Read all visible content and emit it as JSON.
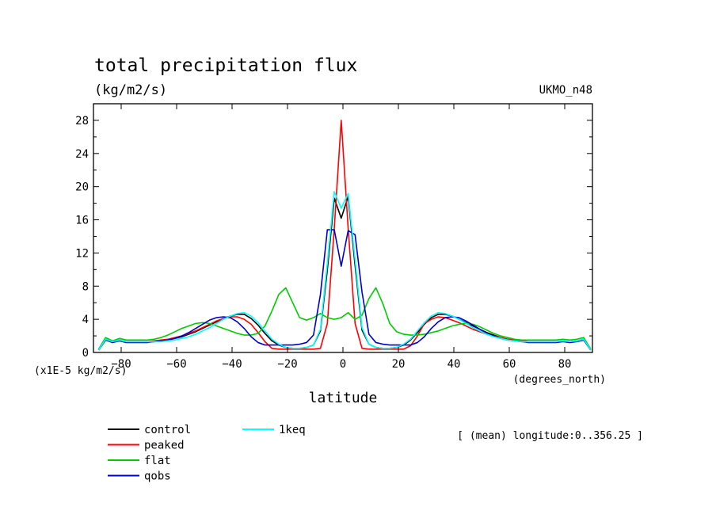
{
  "chart_data": {
    "type": "line",
    "title": "total precipitation flux",
    "units": "(kg/m2/s)",
    "model_label": "UKMO_n48",
    "scale_note": "(x1E-5 kg/m2/s)",
    "xlabel": "latitude",
    "x_units": "(degrees_north)",
    "ylabel": "",
    "xlim": [
      -90,
      90
    ],
    "ylim": [
      0,
      30
    ],
    "x_ticks": [
      -80,
      -60,
      -40,
      -20,
      0,
      20,
      40,
      60,
      80
    ],
    "y_ticks": [
      0,
      4,
      8,
      12,
      16,
      20,
      24,
      28
    ],
    "annotation": "[ (mean) longitude:0..356.25 ]",
    "legend_placement": "bottom",
    "x": [
      -88.125,
      -85.625,
      -83.125,
      -80.625,
      -78.125,
      -75.625,
      -73.125,
      -70.625,
      -68.125,
      -65.625,
      -63.125,
      -60.625,
      -58.125,
      -55.625,
      -53.125,
      -50.625,
      -48.125,
      -45.625,
      -43.125,
      -40.625,
      -38.125,
      -35.625,
      -33.125,
      -30.625,
      -28.125,
      -25.625,
      -23.125,
      -20.625,
      -18.125,
      -15.625,
      -13.125,
      -10.625,
      -8.125,
      -5.625,
      -3.125,
      -0.625,
      1.875,
      4.375,
      6.875,
      9.375,
      11.875,
      14.375,
      16.875,
      19.375,
      21.875,
      24.375,
      26.875,
      29.375,
      31.875,
      34.375,
      36.875,
      39.375,
      41.875,
      44.375,
      46.875,
      49.375,
      51.875,
      54.375,
      56.875,
      59.375,
      61.875,
      64.375,
      66.875,
      69.375,
      71.875,
      74.375,
      76.875,
      79.375,
      81.875,
      84.375,
      86.875,
      89.375
    ],
    "series": [
      {
        "name": "control",
        "color": "#000000",
        "values": [
          0.3,
          1.6,
          1.3,
          1.5,
          1.3,
          1.3,
          1.3,
          1.3,
          1.3,
          1.4,
          1.5,
          1.7,
          1.9,
          2.2,
          2.5,
          2.9,
          3.3,
          3.7,
          4.1,
          4.4,
          4.6,
          4.6,
          4.1,
          3.3,
          2.3,
          1.4,
          0.9,
          0.6,
          0.5,
          0.5,
          0.6,
          0.9,
          2.6,
          10.0,
          18.6,
          16.2,
          18.8,
          10.5,
          2.7,
          1.0,
          0.6,
          0.5,
          0.5,
          0.6,
          0.9,
          1.5,
          2.4,
          3.4,
          4.2,
          4.6,
          4.6,
          4.4,
          4.0,
          3.6,
          3.2,
          2.8,
          2.4,
          2.1,
          1.8,
          1.6,
          1.5,
          1.4,
          1.3,
          1.3,
          1.3,
          1.3,
          1.3,
          1.4,
          1.3,
          1.4,
          1.6,
          0.3
        ]
      },
      {
        "name": "peaked",
        "color": "#ff0000",
        "values": [
          0.3,
          1.5,
          1.3,
          1.4,
          1.3,
          1.3,
          1.3,
          1.3,
          1.4,
          1.5,
          1.6,
          1.8,
          2.0,
          2.3,
          2.6,
          3.0,
          3.4,
          3.8,
          4.1,
          4.3,
          4.3,
          4.0,
          3.4,
          2.4,
          1.3,
          0.5,
          0.4,
          0.4,
          0.4,
          0.4,
          0.4,
          0.4,
          0.5,
          3.5,
          15.0,
          28.0,
          15.0,
          3.5,
          0.5,
          0.4,
          0.4,
          0.4,
          0.4,
          0.4,
          0.4,
          0.8,
          2.0,
          3.5,
          4.0,
          4.3,
          4.2,
          3.9,
          3.6,
          3.2,
          2.8,
          2.5,
          2.2,
          2.0,
          1.8,
          1.6,
          1.5,
          1.4,
          1.3,
          1.3,
          1.3,
          1.3,
          1.3,
          1.4,
          1.3,
          1.4,
          1.5,
          0.3
        ]
      },
      {
        "name": "flat",
        "color": "#00cc00",
        "values": [
          0.4,
          1.8,
          1.4,
          1.7,
          1.5,
          1.5,
          1.5,
          1.5,
          1.6,
          1.8,
          2.1,
          2.5,
          2.9,
          3.2,
          3.5,
          3.6,
          3.5,
          3.2,
          2.9,
          2.6,
          2.3,
          2.1,
          2.1,
          2.3,
          3.2,
          5.0,
          7.0,
          7.8,
          6.0,
          4.2,
          3.9,
          4.2,
          4.7,
          4.2,
          4.0,
          4.2,
          4.8,
          4.0,
          4.5,
          6.5,
          7.8,
          5.9,
          3.5,
          2.5,
          2.2,
          2.1,
          2.1,
          2.2,
          2.4,
          2.6,
          2.9,
          3.2,
          3.4,
          3.5,
          3.4,
          3.1,
          2.7,
          2.3,
          2.0,
          1.8,
          1.6,
          1.5,
          1.5,
          1.5,
          1.5,
          1.5,
          1.5,
          1.6,
          1.5,
          1.6,
          1.8,
          0.4
        ]
      },
      {
        "name": "qobs",
        "color": "#0000cc",
        "values": [
          0.3,
          1.5,
          1.2,
          1.4,
          1.2,
          1.2,
          1.2,
          1.2,
          1.3,
          1.4,
          1.5,
          1.7,
          2.0,
          2.4,
          2.9,
          3.4,
          3.9,
          4.2,
          4.3,
          4.2,
          3.7,
          2.9,
          1.9,
          1.2,
          0.9,
          0.9,
          0.9,
          0.9,
          0.9,
          1.0,
          1.2,
          2.1,
          7.0,
          14.8,
          14.8,
          10.4,
          14.7,
          14.2,
          7.3,
          2.2,
          1.2,
          1.0,
          0.9,
          0.9,
          0.9,
          0.9,
          1.2,
          1.9,
          2.9,
          3.7,
          4.2,
          4.3,
          4.2,
          3.8,
          3.3,
          2.8,
          2.3,
          2.0,
          1.7,
          1.5,
          1.4,
          1.3,
          1.2,
          1.2,
          1.2,
          1.2,
          1.2,
          1.3,
          1.2,
          1.3,
          1.5,
          0.3
        ]
      },
      {
        "name": "1keq",
        "color": "#00ffff",
        "values": [
          0.3,
          1.6,
          1.3,
          1.5,
          1.3,
          1.3,
          1.3,
          1.3,
          1.3,
          1.3,
          1.4,
          1.5,
          1.7,
          1.9,
          2.2,
          2.6,
          3.0,
          3.5,
          4.0,
          4.4,
          4.7,
          4.8,
          4.4,
          3.6,
          2.6,
          1.6,
          1.0,
          0.6,
          0.5,
          0.5,
          0.6,
          0.9,
          2.8,
          10.8,
          19.4,
          17.4,
          19.2,
          11.2,
          3.0,
          1.0,
          0.6,
          0.5,
          0.5,
          0.6,
          1.0,
          1.6,
          2.6,
          3.6,
          4.4,
          4.8,
          4.7,
          4.4,
          4.0,
          3.5,
          3.0,
          2.6,
          2.2,
          1.9,
          1.7,
          1.5,
          1.4,
          1.3,
          1.3,
          1.3,
          1.3,
          1.3,
          1.3,
          1.4,
          1.3,
          1.4,
          1.6,
          0.3
        ]
      }
    ]
  }
}
